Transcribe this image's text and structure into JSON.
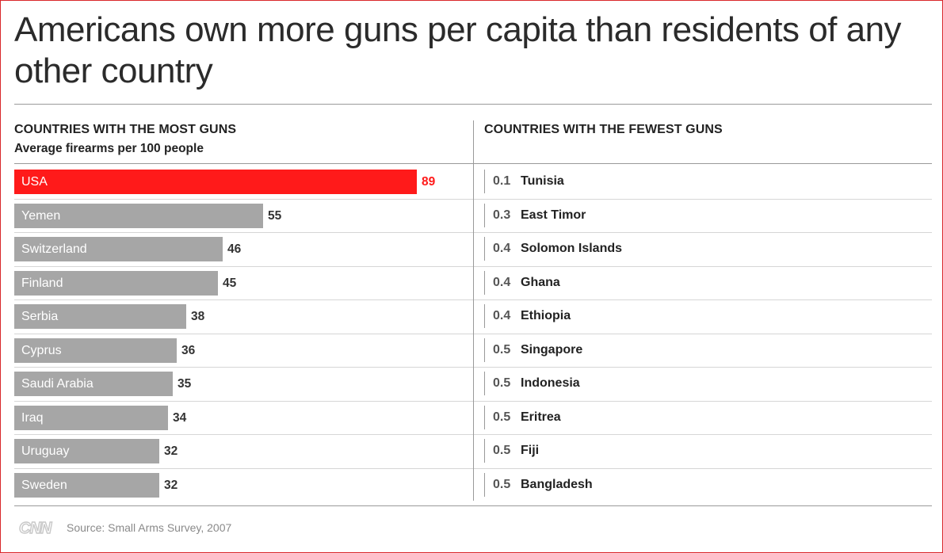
{
  "title": "Americans own more guns per capita than residents of any other country",
  "left_heading": "COUNTRIES WITH THE MOST GUNS",
  "left_subheading": "Average firearms per 100 people",
  "right_heading": "COUNTRIES WITH THE FEWEST GUNS",
  "logo_text": "CNN",
  "source": "Source: Small Arms Survey, 2007",
  "colors": {
    "highlight": "#ff1a1a",
    "bar": "#a6a6a6",
    "value_text": "#333333"
  },
  "chart_data": [
    {
      "type": "bar",
      "orientation": "horizontal",
      "title": "COUNTRIES WITH THE MOST GUNS",
      "subtitle": "Average firearms per 100 people",
      "categories": [
        "USA",
        "Yemen",
        "Switzerland",
        "Finland",
        "Serbia",
        "Cyprus",
        "Saudi Arabia",
        "Iraq",
        "Uruguay",
        "Sweden"
      ],
      "values": [
        89,
        55,
        46,
        45,
        38,
        36,
        35,
        34,
        32,
        32
      ],
      "highlight": "USA",
      "xlim": [
        0,
        89
      ],
      "grid": false
    },
    {
      "type": "table",
      "title": "COUNTRIES WITH THE FEWEST GUNS",
      "categories": [
        "Tunisia",
        "East Timor",
        "Solomon Islands",
        "Ghana",
        "Ethiopia",
        "Singapore",
        "Indonesia",
        "Eritrea",
        "Fiji",
        "Bangladesh"
      ],
      "values": [
        0.1,
        0.3,
        0.4,
        0.4,
        0.4,
        0.5,
        0.5,
        0.5,
        0.5,
        0.5
      ]
    }
  ]
}
